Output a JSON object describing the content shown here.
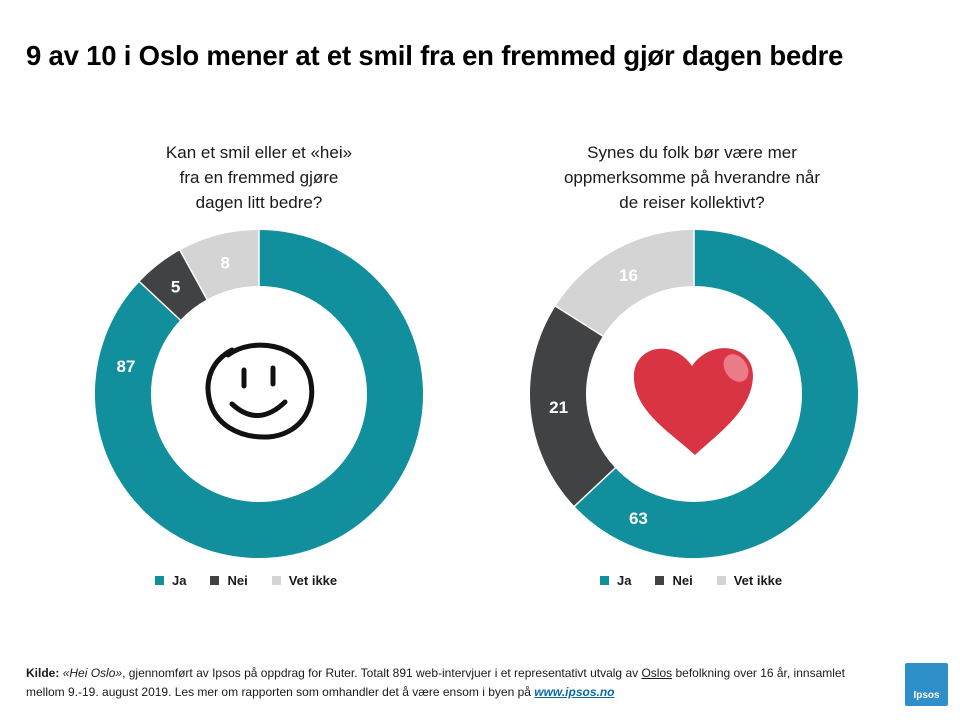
{
  "title": "9 av 10 i Oslo mener at et smil fra en fremmed gjør dagen bedre",
  "colors": {
    "ja": "#118f9c",
    "nei": "#414244",
    "vet_ikke": "#d4d4d4",
    "heart": "#d93443"
  },
  "legend_labels": [
    "Ja",
    "Nei",
    "Vet ikke"
  ],
  "chart_data": [
    {
      "type": "pie",
      "title": "Kan et smil eller et «hei» fra en fremmed gjøre dagen litt bedre?",
      "title_lines": [
        "Kan et smil eller et «hei»",
        "fra en fremmed gjøre",
        "dagen litt bedre?"
      ],
      "donut": true,
      "center_icon": "smiley-icon",
      "legend_position": "bottom",
      "categories": [
        "Ja",
        "Nei",
        "Vet ikke"
      ],
      "values": [
        87,
        5,
        8
      ]
    },
    {
      "type": "pie",
      "title": "Synes du folk bør være mer oppmerksomme på hverandre når de reiser kollektivt?",
      "title_lines": [
        "Synes du folk bør være mer",
        "oppmerksomme på hverandre når",
        "de reiser kollektivt?"
      ],
      "donut": true,
      "center_icon": "heart-icon",
      "legend_position": "bottom",
      "categories": [
        "Ja",
        "Nei",
        "Vet ikke"
      ],
      "values": [
        63,
        21,
        16
      ]
    }
  ],
  "footer": {
    "label": "Kilde:",
    "report": "«Hei Oslo»",
    "text1": ", gjennomført av Ipsos på oppdrag for Ruter. Totalt 891 web-intervjuer i et representativt utvalg av ",
    "oslo": "Oslos",
    "text2": " befolkning over 16 år, innsamlet mellom 9.-19. august 2019. Les mer om rapporten som omhandler det å være ensom i byen på ",
    "link": "www.ipsos.no"
  },
  "logo_text": "Ipsos"
}
